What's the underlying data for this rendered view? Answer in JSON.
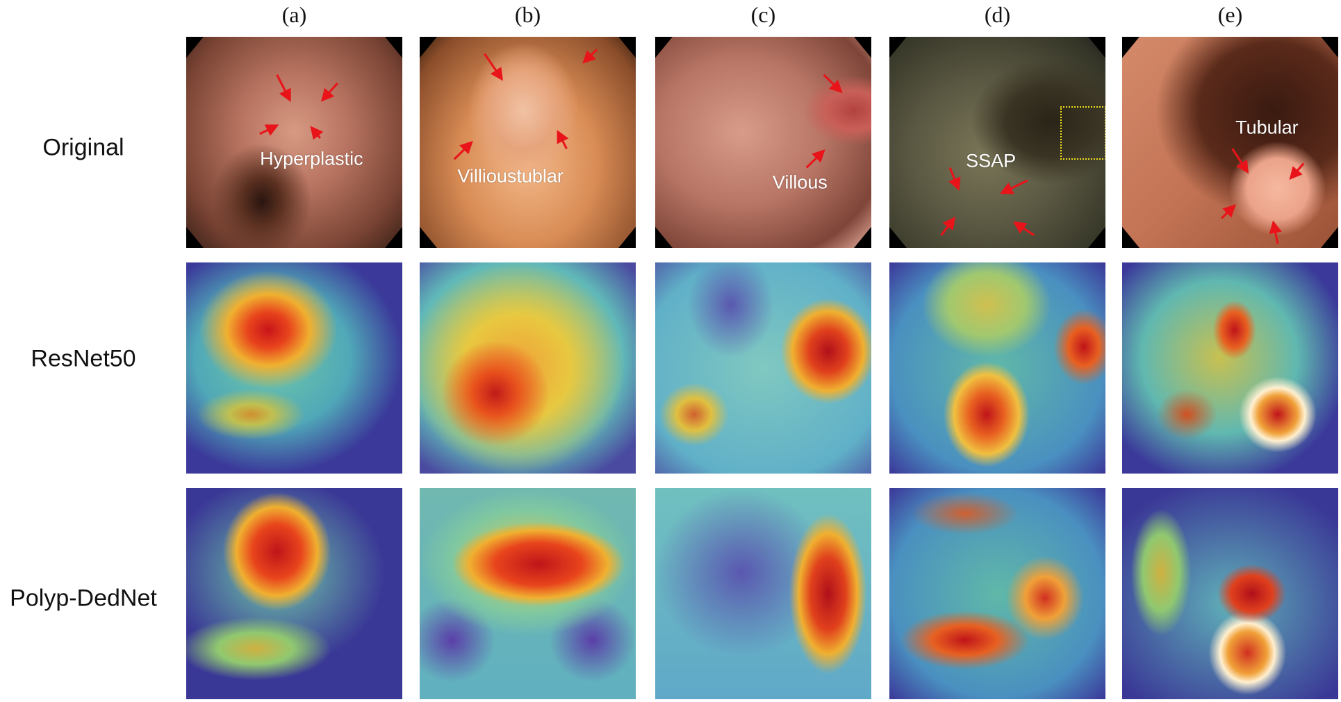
{
  "columns": [
    {
      "label": "(a)",
      "lesion": "Hyperplastic"
    },
    {
      "label": "(b)",
      "lesion": "Villioustublar"
    },
    {
      "label": "(c)",
      "lesion": "Villous"
    },
    {
      "label": "(d)",
      "lesion": "SSAP"
    },
    {
      "label": "(e)",
      "lesion": "Tubular"
    }
  ],
  "rows": [
    {
      "label": "Original"
    },
    {
      "label": "ResNet50"
    },
    {
      "label": "Polyp-DedNet"
    }
  ],
  "colors": {
    "arrow": "#e8141a",
    "roi_box": "#f2e21a"
  }
}
